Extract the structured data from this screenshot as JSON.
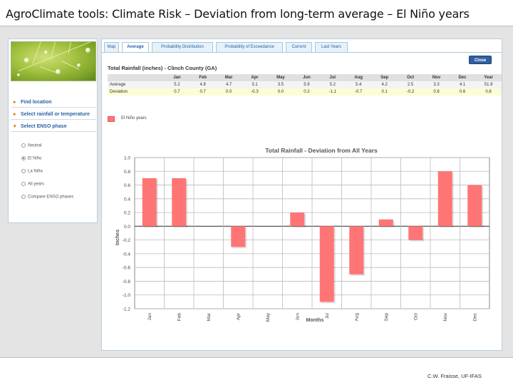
{
  "slide": {
    "title": "AgroClimate tools: Climate Risk – Deviation from long-term average – El Niño years",
    "footer": "C.W. Fraisse, UF-IFAS"
  },
  "sidebar": {
    "links": [
      {
        "label": "Find location",
        "icon": "arrow-right-icon"
      },
      {
        "label": "Select rainfall or temperature",
        "icon": "arrow-right-icon"
      },
      {
        "label": "Select ENSO phase",
        "icon": "arrow-down-icon"
      }
    ],
    "phases": [
      {
        "label": "Neutral",
        "selected": false
      },
      {
        "label": "El Niño",
        "selected": true
      },
      {
        "label": "La Niña",
        "selected": false
      },
      {
        "label": "All years",
        "selected": false
      },
      {
        "label": "Compare ENSO phases",
        "selected": false
      }
    ]
  },
  "tabs": [
    {
      "label": "Map",
      "active": false
    },
    {
      "label": "Average",
      "active": true
    },
    {
      "label": "Probability Distribution",
      "active": false
    },
    {
      "label": "Probability of Exceedance",
      "active": false
    },
    {
      "label": "Current",
      "active": false
    },
    {
      "label": "Last Years",
      "active": false
    }
  ],
  "close_label": "Close",
  "table": {
    "title": "Total Rainfall (inches)  - Clinch County (GA)",
    "columns": [
      "Jan",
      "Feb",
      "Mar",
      "Apr",
      "May",
      "Jun",
      "Jul",
      "Aug",
      "Sep",
      "Oct",
      "Nov",
      "Dec",
      "Year"
    ],
    "rows": [
      {
        "label": "Average",
        "values": [
          "5.2",
          "4.8",
          "4.7",
          "3.1",
          "3.5",
          "5.9",
          "5.2",
          "5.4",
          "4.2",
          "2.5",
          "3.3",
          "4.1",
          "51.9"
        ]
      },
      {
        "label": "Deviation",
        "values": [
          "0.7",
          "0.7",
          "0.0",
          "-0.3",
          "0.0",
          "0.2",
          "-1.1",
          "-0.7",
          "0.1",
          "-0.2",
          "0.8",
          "0.6",
          "0.8"
        ]
      }
    ]
  },
  "legend_label": "El Niño years",
  "chart_data": {
    "type": "bar",
    "title": "Total Rainfall - Deviation from All Years",
    "xlabel": "Months",
    "ylabel": "Inches",
    "categories": [
      "Jan",
      "Feb",
      "Mar",
      "Apr",
      "May",
      "Jun",
      "Jul",
      "Aug",
      "Sep",
      "Oct",
      "Nov",
      "Dec"
    ],
    "series": [
      {
        "name": "El Niño years",
        "values": [
          0.7,
          0.7,
          0.0,
          -0.3,
          0.0,
          0.2,
          -1.1,
          -0.7,
          0.1,
          -0.2,
          0.8,
          0.6
        ]
      }
    ],
    "ylim": [
      -1.2,
      1.0
    ],
    "yticks": [
      "1.0",
      "0.8",
      "0.6",
      "0.4",
      "0.2",
      "0.0",
      "-0.2",
      "-0.4",
      "-0.6",
      "-0.8",
      "-1.0",
      "-1.2"
    ],
    "bar_color": "#ff7575",
    "grid": true
  },
  "colors": {
    "accent": "#2f5f9e",
    "tab_bg": "#e6f1f9",
    "bar": "#ff7575"
  }
}
